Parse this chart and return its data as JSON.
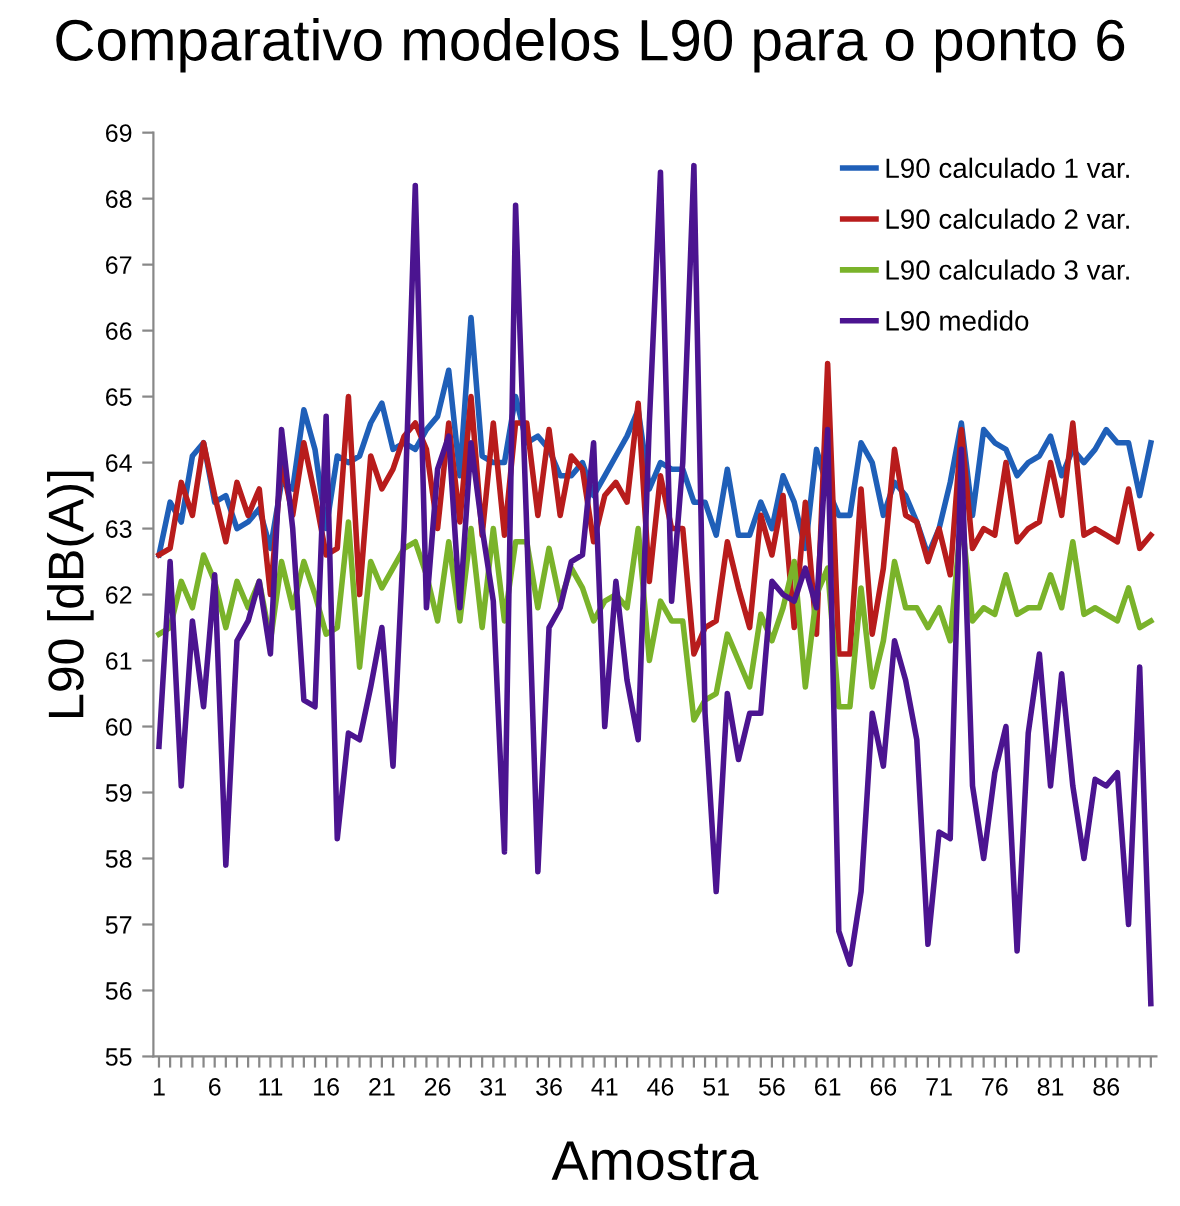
{
  "chart_data": {
    "type": "line",
    "title": "Comparativo modelos L90 para o ponto 6",
    "xlabel": "Amostra",
    "ylabel": "L90 [dB(A)]",
    "categories": [
      "1",
      null,
      null,
      null,
      null,
      "6",
      null,
      null,
      null,
      null,
      "11",
      null,
      null,
      null,
      null,
      "16",
      null,
      null,
      null,
      null,
      "21",
      null,
      null,
      null,
      null,
      "26",
      null,
      null,
      null,
      null,
      "31",
      null,
      null,
      null,
      null,
      "36",
      null,
      null,
      null,
      null,
      "41",
      null,
      null,
      null,
      null,
      "46",
      null,
      null,
      null,
      null,
      "51",
      null,
      null,
      null,
      null,
      "56",
      null,
      null,
      null,
      null,
      "61",
      null,
      null,
      null,
      null,
      "66",
      null,
      null,
      null,
      null,
      "71",
      null,
      null,
      null,
      null,
      "76",
      null,
      null,
      null,
      null,
      "81",
      null,
      null,
      null,
      null,
      "86",
      null,
      null,
      null,
      null
    ],
    "ylim": [
      55,
      69
    ],
    "yticks": [
      55,
      56,
      57,
      58,
      59,
      60,
      61,
      62,
      63,
      64,
      65,
      66,
      67,
      68,
      69
    ],
    "grid": false,
    "legend": "top right",
    "marker": "none",
    "line_style": "solid",
    "series": [
      {
        "name": "L90 calculado 1 var.",
        "color": "#1f5fb8",
        "values": [
          62.6,
          63.4,
          63.1,
          64.1,
          64.3,
          63.4,
          63.5,
          63.0,
          63.1,
          63.3,
          62.7,
          63.7,
          63.6,
          64.8,
          64.2,
          63.0,
          64.1,
          64.0,
          64.1,
          64.6,
          64.9,
          64.2,
          64.3,
          64.2,
          64.5,
          64.7,
          65.4,
          63.8,
          66.2,
          64.1,
          64.0,
          64.0,
          65.0,
          64.3,
          64.4,
          64.2,
          63.8,
          63.8,
          64.0,
          63.5,
          63.8,
          64.1,
          64.4,
          64.8,
          63.6,
          64.0,
          63.9,
          63.9,
          63.4,
          63.4,
          62.9,
          63.9,
          62.9,
          62.9,
          63.4,
          63.0,
          63.8,
          63.4,
          62.7,
          64.2,
          63.6,
          63.2,
          63.2,
          64.3,
          64.0,
          63.2,
          63.7,
          63.5,
          63.1,
          62.6,
          63.0,
          63.7,
          64.6,
          63.2,
          64.5,
          64.3,
          64.2,
          63.8,
          64.0,
          64.1,
          64.4,
          63.8,
          64.2,
          64.0,
          64.2,
          64.5,
          64.3,
          64.3,
          63.5,
          64.3
        ]
      },
      {
        "name": "L90 calculado 2 var.",
        "color": "#b81c1c",
        "values": [
          62.6,
          62.7,
          63.7,
          63.2,
          64.3,
          63.5,
          62.8,
          63.7,
          63.2,
          63.6,
          62.0,
          64.0,
          63.2,
          64.3,
          63.5,
          62.6,
          62.7,
          65.0,
          62.0,
          64.1,
          63.6,
          63.9,
          64.4,
          64.6,
          64.2,
          63.0,
          64.6,
          63.1,
          65.0,
          62.9,
          64.6,
          62.9,
          64.6,
          64.6,
          63.2,
          64.5,
          63.2,
          64.1,
          63.9,
          62.8,
          63.5,
          63.7,
          63.4,
          64.9,
          62.2,
          63.8,
          63.0,
          63.0,
          61.1,
          61.5,
          61.6,
          62.8,
          62.1,
          61.5,
          63.2,
          62.6,
          63.5,
          61.5,
          63.4,
          61.4,
          65.5,
          61.1,
          61.1,
          63.6,
          61.4,
          62.4,
          64.2,
          63.2,
          63.1,
          62.5,
          63.0,
          62.3,
          64.5,
          62.7,
          63.0,
          62.9,
          64.0,
          62.8,
          63.0,
          63.1,
          64.0,
          63.2,
          64.6,
          62.9,
          63.0,
          62.9,
          62.8,
          63.6,
          62.7,
          62.9
        ]
      },
      {
        "name": "L90 calculado 3 var.",
        "color": "#7ab32a",
        "values": [
          61.4,
          61.5,
          62.2,
          61.8,
          62.6,
          62.2,
          61.5,
          62.2,
          61.8,
          62.2,
          61.3,
          62.5,
          61.8,
          62.5,
          62.0,
          61.4,
          61.5,
          63.1,
          60.9,
          62.5,
          62.1,
          62.4,
          62.7,
          62.8,
          62.3,
          61.6,
          62.8,
          61.6,
          63.0,
          61.5,
          63.0,
          61.6,
          62.8,
          62.8,
          61.8,
          62.7,
          61.9,
          62.4,
          62.1,
          61.6,
          61.9,
          62.0,
          61.8,
          63.0,
          61.0,
          61.9,
          61.6,
          61.6,
          60.1,
          60.4,
          60.5,
          61.4,
          61.0,
          60.6,
          61.7,
          61.3,
          61.8,
          62.5,
          60.6,
          62.0,
          62.4,
          60.3,
          60.3,
          62.1,
          60.6,
          61.3,
          62.5,
          61.8,
          61.8,
          61.5,
          61.8,
          61.3,
          63.2,
          61.6,
          61.8,
          61.7,
          62.3,
          61.7,
          61.8,
          61.8,
          62.3,
          61.8,
          62.8,
          61.7,
          61.8,
          61.7,
          61.6,
          62.1,
          61.5,
          61.6
        ]
      },
      {
        "name": "L90 medido",
        "color": "#4b1490",
        "values": [
          59.7,
          62.5,
          59.1,
          61.6,
          60.3,
          62.3,
          57.9,
          61.3,
          61.6,
          62.2,
          61.1,
          64.5,
          63.0,
          60.4,
          60.3,
          64.7,
          58.3,
          59.9,
          59.8,
          60.6,
          61.5,
          59.4,
          63.0,
          68.2,
          61.8,
          63.9,
          64.4,
          61.8,
          64.3,
          63.0,
          61.9,
          58.1,
          67.9,
          63.0,
          57.8,
          61.5,
          61.8,
          62.5,
          62.6,
          64.3,
          60.0,
          62.2,
          60.7,
          59.8,
          64.6,
          68.4,
          61.9,
          64.0,
          68.5,
          60.2,
          57.5,
          60.5,
          59.5,
          60.2,
          60.2,
          62.2,
          62.0,
          61.9,
          62.4,
          61.8,
          64.5,
          56.9,
          56.4,
          57.5,
          60.2,
          59.4,
          61.3,
          60.7,
          59.8,
          56.7,
          58.4,
          58.3,
          64.2,
          59.1,
          58.0,
          59.3,
          60.0,
          56.6,
          59.9,
          61.1,
          59.1,
          60.8,
          59.1,
          58.0,
          59.2,
          59.1,
          59.3,
          57.0,
          60.9,
          55.8
        ]
      }
    ]
  }
}
